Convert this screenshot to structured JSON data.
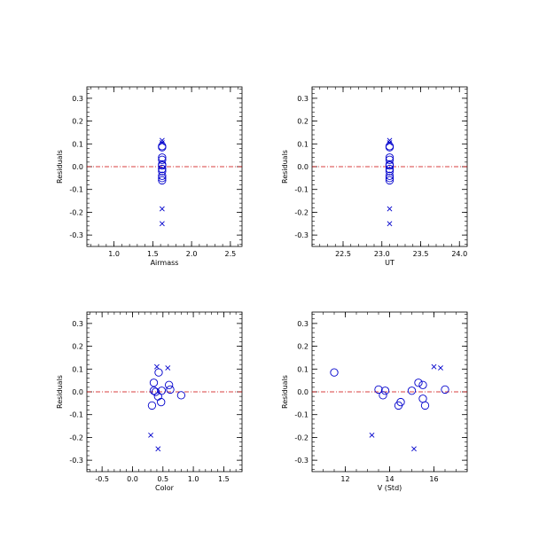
{
  "chart_data": [
    {
      "type": "scatter",
      "xlabel": "Airmass",
      "ylabel": "Residuals",
      "xlim": [
        0.65,
        2.65
      ],
      "ylim": [
        -0.35,
        0.35
      ],
      "xticks": [
        1.0,
        1.5,
        2.0,
        2.5
      ],
      "xtick_labels": [
        "1.0",
        "1.5",
        "2.0",
        "2.5"
      ],
      "yticks": [
        -0.3,
        -0.2,
        -0.1,
        0.0,
        0.1,
        0.2,
        0.3
      ],
      "ytick_labels": [
        "-0.3",
        "-0.2",
        "-0.1",
        "0.0",
        "0.1",
        "0.2",
        "0.3"
      ],
      "zero_line": 0.0,
      "colors": {
        "points": "#0000cc",
        "zero_line": "#cc0000",
        "axes": "#000000"
      },
      "circles": [
        [
          1.62,
          0.09
        ],
        [
          1.62,
          0.085
        ],
        [
          1.62,
          0.04
        ],
        [
          1.62,
          0.03
        ],
        [
          1.62,
          0.01
        ],
        [
          1.62,
          0.005
        ],
        [
          1.62,
          -0.01
        ],
        [
          1.62,
          -0.02
        ],
        [
          1.62,
          -0.04
        ],
        [
          1.62,
          -0.05
        ],
        [
          1.62,
          -0.06
        ]
      ],
      "crosses": [
        [
          1.62,
          0.115
        ],
        [
          1.62,
          0.105
        ],
        [
          1.62,
          -0.185
        ],
        [
          1.62,
          -0.25
        ]
      ]
    },
    {
      "type": "scatter",
      "xlabel": "UT",
      "ylabel": "Residuals",
      "xlim": [
        22.1,
        24.1
      ],
      "ylim": [
        -0.35,
        0.35
      ],
      "xticks": [
        22.5,
        23.0,
        23.5,
        24.0
      ],
      "xtick_labels": [
        "22.5",
        "23.0",
        "23.5",
        "24.0"
      ],
      "yticks": [
        -0.3,
        -0.2,
        -0.1,
        0.0,
        0.1,
        0.2,
        0.3
      ],
      "ytick_labels": [
        "-0.3",
        "-0.2",
        "-0.1",
        "0.0",
        "0.1",
        "0.2",
        "0.3"
      ],
      "zero_line": 0.0,
      "colors": {
        "points": "#0000cc",
        "zero_line": "#cc0000",
        "axes": "#000000"
      },
      "circles": [
        [
          23.1,
          0.09
        ],
        [
          23.1,
          0.085
        ],
        [
          23.1,
          0.04
        ],
        [
          23.1,
          0.03
        ],
        [
          23.1,
          0.01
        ],
        [
          23.1,
          0.005
        ],
        [
          23.1,
          -0.01
        ],
        [
          23.1,
          -0.02
        ],
        [
          23.1,
          -0.04
        ],
        [
          23.1,
          -0.05
        ],
        [
          23.1,
          -0.06
        ]
      ],
      "crosses": [
        [
          23.1,
          0.115
        ],
        [
          23.1,
          0.105
        ],
        [
          23.1,
          -0.185
        ],
        [
          23.1,
          -0.25
        ]
      ]
    },
    {
      "type": "scatter",
      "xlabel": "Color",
      "ylabel": "Residuals",
      "xlim": [
        -0.75,
        1.8
      ],
      "ylim": [
        -0.35,
        0.35
      ],
      "xticks": [
        -0.5,
        0.0,
        0.5,
        1.0,
        1.5
      ],
      "xtick_labels": [
        "-0.5",
        "0.0",
        "0.5",
        "1.0",
        "1.5"
      ],
      "yticks": [
        -0.3,
        -0.2,
        -0.1,
        0.0,
        0.1,
        0.2,
        0.3
      ],
      "ytick_labels": [
        "-0.3",
        "-0.2",
        "-0.1",
        "0.0",
        "0.1",
        "0.2",
        "0.3"
      ],
      "zero_line": 0.0,
      "colors": {
        "points": "#0000cc",
        "zero_line": "#cc0000",
        "axes": "#000000"
      },
      "circles": [
        [
          0.43,
          0.085
        ],
        [
          0.35,
          0.04
        ],
        [
          0.6,
          0.03
        ],
        [
          0.35,
          0.005
        ],
        [
          0.48,
          0.005
        ],
        [
          0.38,
          0.0
        ],
        [
          0.62,
          0.01
        ],
        [
          0.8,
          -0.015
        ],
        [
          0.42,
          -0.02
        ],
        [
          0.47,
          -0.045
        ],
        [
          0.32,
          -0.06
        ]
      ],
      "crosses": [
        [
          0.4,
          0.11
        ],
        [
          0.58,
          0.105
        ],
        [
          0.3,
          -0.19
        ],
        [
          0.42,
          -0.25
        ]
      ]
    },
    {
      "type": "scatter",
      "xlabel": "V (Std)",
      "ylabel": "Residuals",
      "xlim": [
        10.5,
        17.5
      ],
      "ylim": [
        -0.35,
        0.35
      ],
      "xticks": [
        12,
        14,
        16
      ],
      "xtick_labels": [
        "12",
        "14",
        "16"
      ],
      "yticks": [
        -0.3,
        -0.2,
        -0.1,
        0.0,
        0.1,
        0.2,
        0.3
      ],
      "ytick_labels": [
        "-0.3",
        "-0.2",
        "-0.1",
        "0.0",
        "0.1",
        "0.2",
        "0.3"
      ],
      "zero_line": 0.0,
      "colors": {
        "points": "#0000cc",
        "zero_line": "#cc0000",
        "axes": "#000000"
      },
      "circles": [
        [
          11.5,
          0.085
        ],
        [
          15.3,
          0.04
        ],
        [
          15.5,
          0.03
        ],
        [
          13.5,
          0.01
        ],
        [
          13.8,
          0.005
        ],
        [
          15.0,
          0.005
        ],
        [
          16.5,
          0.01
        ],
        [
          13.7,
          -0.015
        ],
        [
          15.5,
          -0.03
        ],
        [
          14.5,
          -0.045
        ],
        [
          14.4,
          -0.06
        ],
        [
          15.6,
          -0.06
        ]
      ],
      "crosses": [
        [
          16.0,
          0.11
        ],
        [
          16.3,
          0.105
        ],
        [
          13.2,
          -0.19
        ],
        [
          15.1,
          -0.25
        ]
      ]
    }
  ]
}
